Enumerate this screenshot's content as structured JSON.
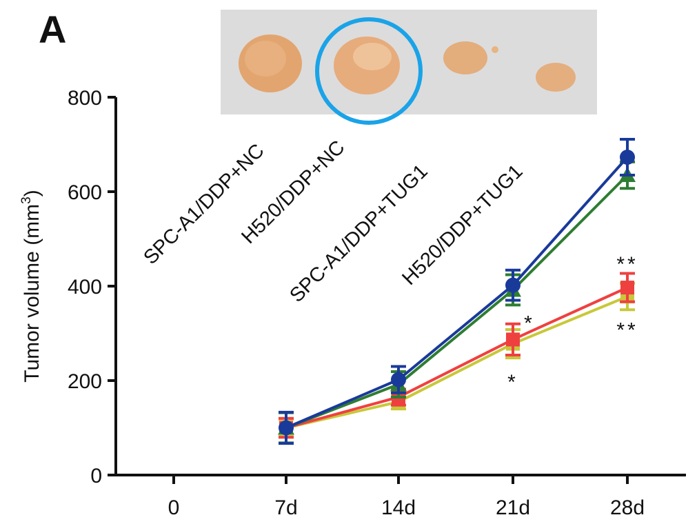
{
  "panel_label": "A",
  "chart_data": {
    "type": "line",
    "xlabel": "",
    "ylabel": "Tumor volume (mm",
    "ylabel_superscript": "3",
    "ylabel_close": ")",
    "ylim": [
      0,
      800
    ],
    "y_ticks": [
      "0",
      "200",
      "400",
      "600",
      "800"
    ],
    "categories": [
      "0",
      "7d",
      "14d",
      "21d",
      "28d"
    ],
    "grid": false,
    "legend_position": "top-left (rotated labels under photo)",
    "series": [
      {
        "name": "SPC-A1/DDP+NC",
        "color": "#2e7d32",
        "marker": "triangle",
        "x": [
          "7d",
          "14d",
          "21d",
          "28d"
        ],
        "values": [
          100,
          192,
          392,
          635
        ],
        "errors": [
          32,
          27,
          32,
          28
        ]
      },
      {
        "name": "H520/DDP+NC",
        "color": "#1a3a9a",
        "marker": "circle",
        "x": [
          "7d",
          "14d",
          "21d",
          "28d"
        ],
        "values": [
          100,
          202,
          402,
          673
        ],
        "errors": [
          33,
          28,
          32,
          38
        ]
      },
      {
        "name": "SPC-A1/DDP+TUG1",
        "color": "#ef4040",
        "marker": "square",
        "x": [
          "7d",
          "14d",
          "21d",
          "28d"
        ],
        "values": [
          100,
          165,
          287,
          397
        ],
        "errors": [
          20,
          17,
          33,
          30
        ]
      },
      {
        "name": "H520/DDP+TUG1",
        "color": "#c8c83a",
        "marker": "square",
        "x": [
          "7d",
          "14d",
          "21d",
          "28d"
        ],
        "values": [
          100,
          155,
          278,
          378
        ],
        "errors": [
          18,
          15,
          30,
          28
        ]
      }
    ],
    "annotations": [
      {
        "text": "*",
        "x": "21d",
        "y": 325,
        "series": "SPC-A1/DDP+TUG1"
      },
      {
        "text": "*",
        "x": "21d",
        "y": 200,
        "series": "H520/DDP+TUG1"
      },
      {
        "text": "**",
        "x": "28d",
        "y": 450,
        "series": "SPC-A1/DDP+TUG1"
      },
      {
        "text": "**",
        "x": "28d",
        "y": 310,
        "series": "H520/DDP+TUG1"
      }
    ]
  },
  "photo": {
    "background": "#dcdcdc",
    "tumor_color": "#e0a070",
    "highlight_ring_color": "#1aa3e8"
  }
}
